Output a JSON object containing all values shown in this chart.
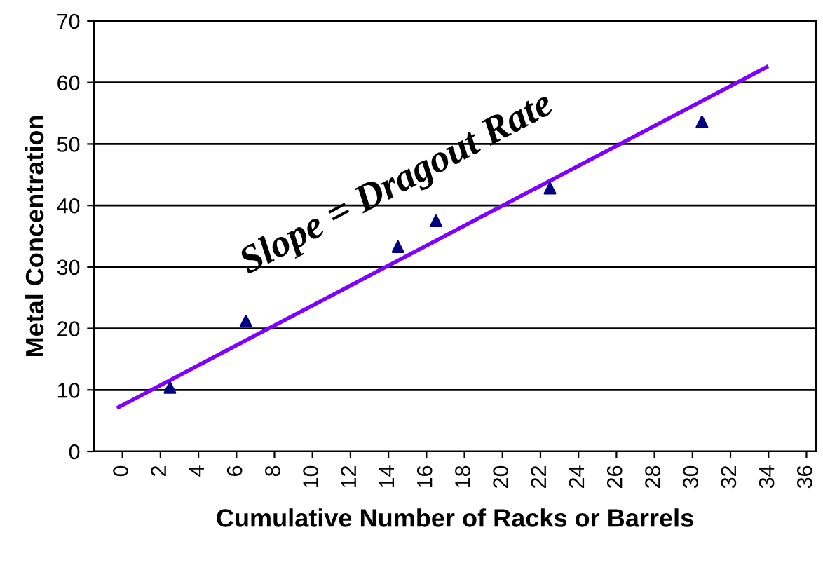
{
  "chart_data": {
    "type": "scatter",
    "xlabel": "Cumulative Number of Racks or Barrels",
    "ylabel": "Metal Concentration",
    "xlim": [
      -1.5,
      36.5
    ],
    "xticks": [
      0,
      2,
      4,
      6,
      8,
      10,
      12,
      14,
      16,
      18,
      20,
      22,
      24,
      26,
      28,
      30,
      32,
      34,
      36
    ],
    "ylim": [
      0,
      70
    ],
    "yticks": [
      0,
      10,
      20,
      30,
      40,
      50,
      60,
      70
    ],
    "grid": "y",
    "legend": false,
    "annotations": [
      "Slope = Dragout Rate"
    ],
    "series": [
      {
        "color": "#000080",
        "marker": "triangle",
        "x": [
          2.5,
          6.5,
          14.5,
          16.5,
          22.5,
          30.5
        ],
        "values": [
          10.4,
          21.2,
          33.3,
          37.5,
          42.8,
          53.6
        ]
      },
      {
        "type": "line",
        "color": "#8000ff",
        "marker": "none",
        "line_style": "solid",
        "x": [
          -0.2,
          33.9
        ],
        "values": [
          7.2,
          62.5
        ]
      }
    ]
  }
}
